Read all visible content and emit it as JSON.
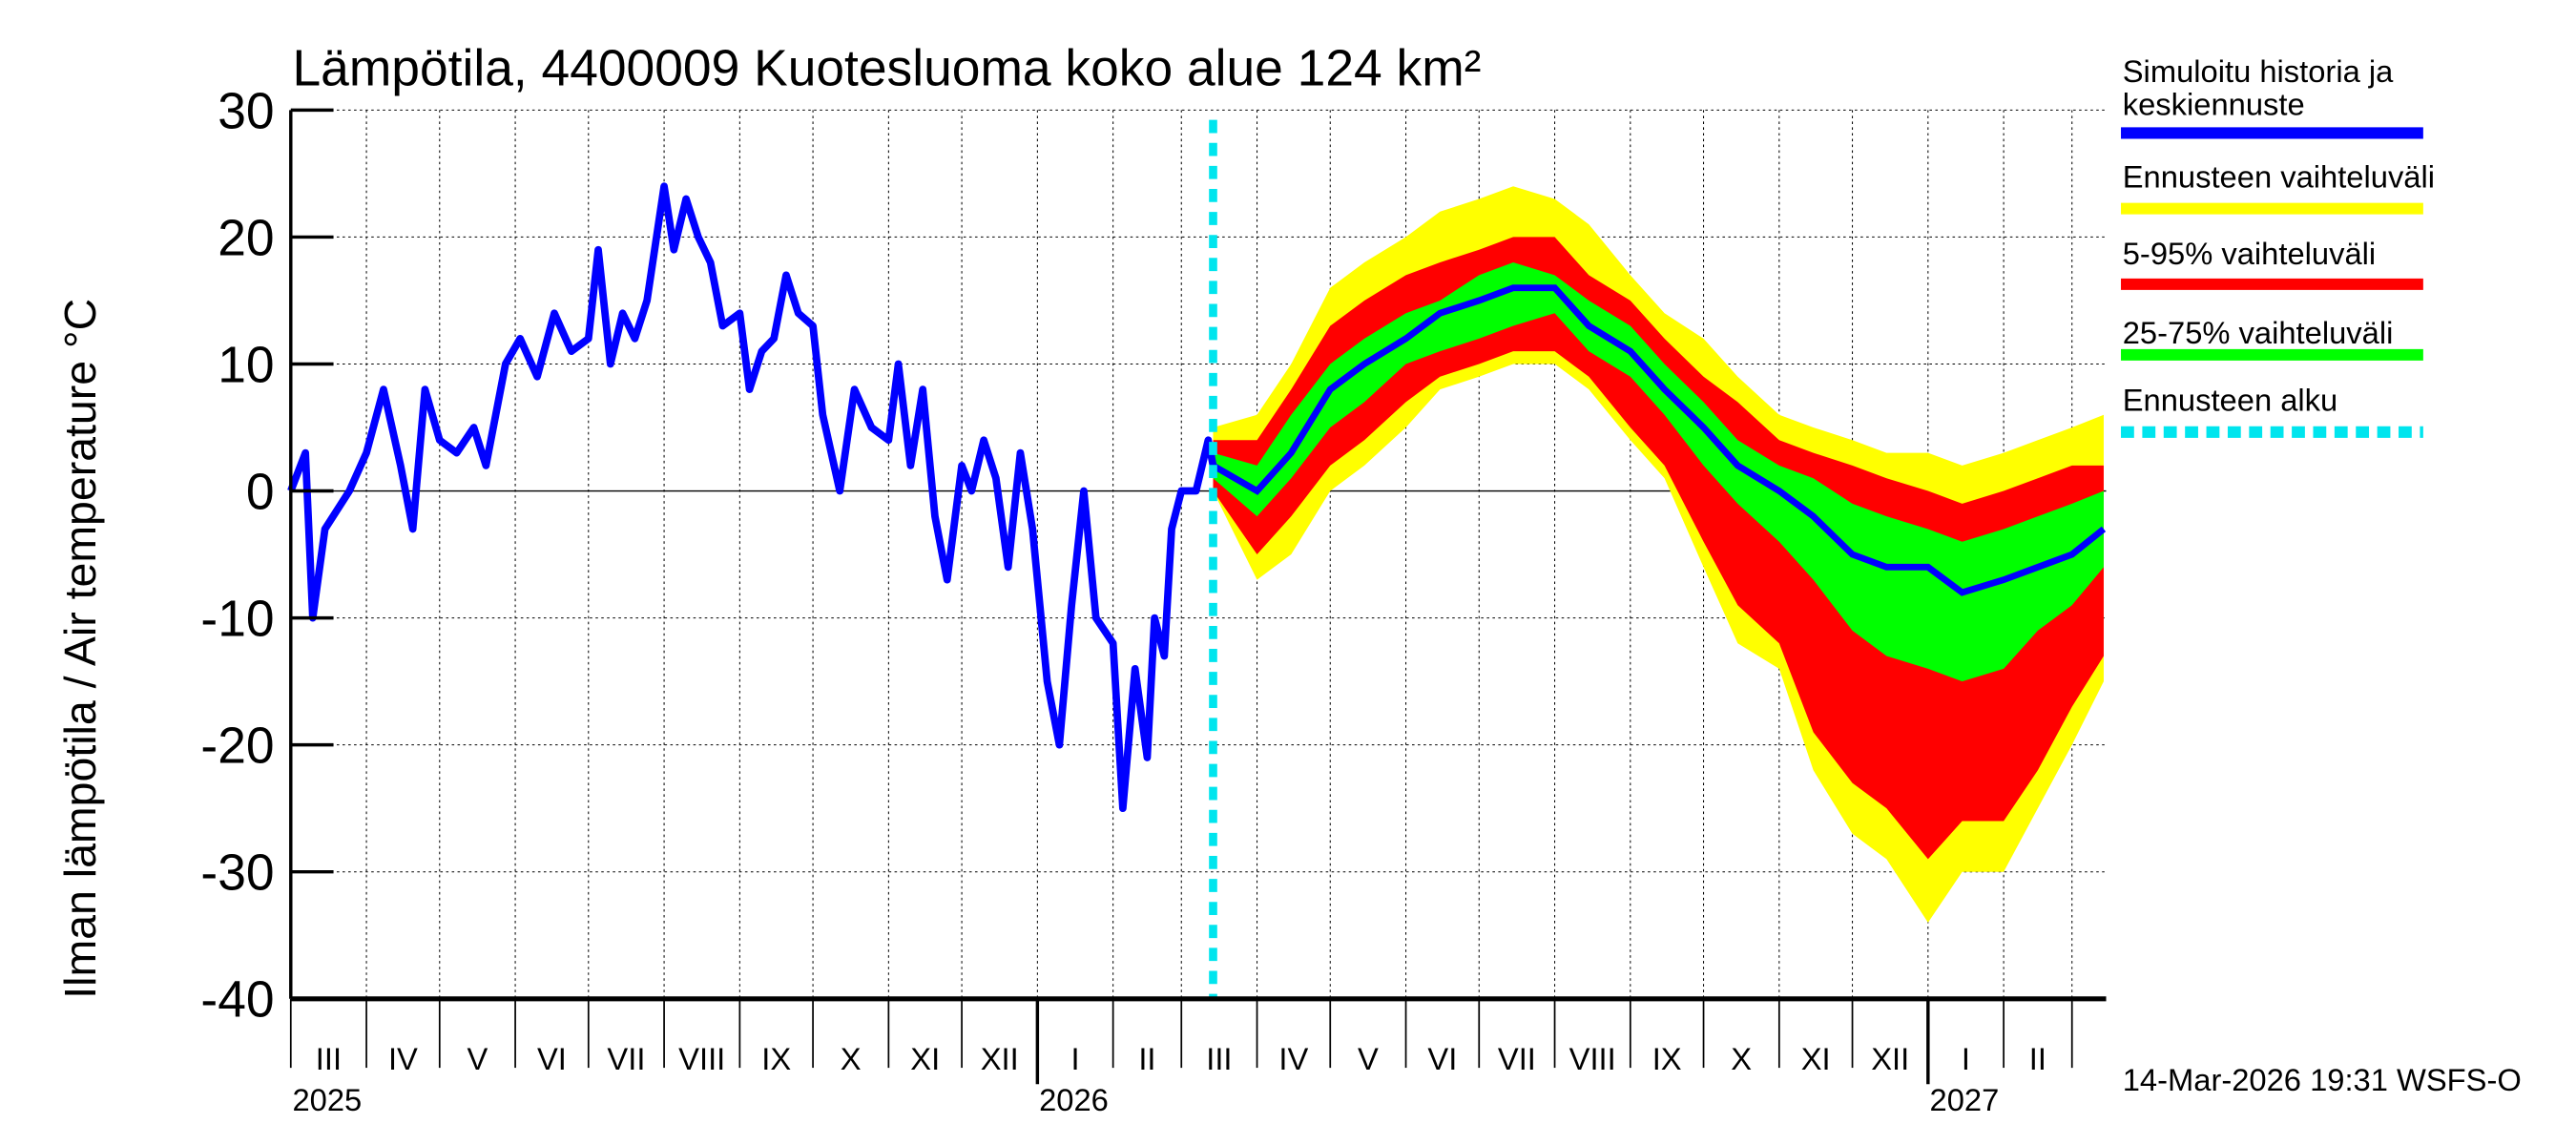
{
  "chart_data": {
    "type": "area",
    "title": "Lämpötila, 4400009 Kuotesluoma koko alue 124 km²",
    "ylabel": "Ilman lämpötila / Air temperature   °C",
    "ylim": [
      -40,
      30
    ],
    "yticks": [
      30,
      20,
      10,
      0,
      -10,
      -20,
      -30,
      -40
    ],
    "xlim": [
      "2025-03-01",
      "2027-03-15"
    ],
    "month_labels": [
      "III",
      "IV",
      "V",
      "VI",
      "VII",
      "VIII",
      "IX",
      "X",
      "XI",
      "XII",
      "I",
      "II",
      "III",
      "IV",
      "V",
      "VI",
      "VII",
      "VIII",
      "IX",
      "X",
      "XI",
      "XII",
      "I",
      "II"
    ],
    "year_labels": [
      {
        "year": "2025",
        "date": "2025-03-01"
      },
      {
        "year": "2026",
        "date": "2026-01-01"
      },
      {
        "year": "2027",
        "date": "2027-01-01"
      }
    ],
    "grid": true,
    "legend_position": "right",
    "legend": [
      {
        "label": "Simuloitu historia ja keskiennuste",
        "color": "#0000ff",
        "style": "solid"
      },
      {
        "label": "Ennusteen vaihteluväli",
        "color": "#ffff00",
        "style": "solid"
      },
      {
        "label": "5-95% vaihteluväli",
        "color": "#ff0000",
        "style": "solid"
      },
      {
        "label": "25-75% vaihteluväli",
        "color": "#00ff00",
        "style": "solid"
      },
      {
        "label": "Ennusteen alku",
        "color": "#00e5ee",
        "style": "dashed"
      }
    ],
    "forecast_start": "2026-03-14",
    "history": [
      [
        "2025-03-01",
        0
      ],
      [
        "2025-03-07",
        3
      ],
      [
        "2025-03-10",
        -10
      ],
      [
        "2025-03-15",
        -3
      ],
      [
        "2025-03-25",
        0
      ],
      [
        "2025-04-01",
        3
      ],
      [
        "2025-04-08",
        8
      ],
      [
        "2025-04-15",
        2
      ],
      [
        "2025-04-20",
        -3
      ],
      [
        "2025-04-25",
        8
      ],
      [
        "2025-05-01",
        4
      ],
      [
        "2025-05-08",
        3
      ],
      [
        "2025-05-15",
        5
      ],
      [
        "2025-05-20",
        2
      ],
      [
        "2025-05-28",
        10
      ],
      [
        "2025-06-03",
        12
      ],
      [
        "2025-06-10",
        9
      ],
      [
        "2025-06-17",
        14
      ],
      [
        "2025-06-24",
        11
      ],
      [
        "2025-07-01",
        12
      ],
      [
        "2025-07-05",
        19
      ],
      [
        "2025-07-10",
        10
      ],
      [
        "2025-07-15",
        14
      ],
      [
        "2025-07-20",
        12
      ],
      [
        "2025-07-25",
        15
      ],
      [
        "2025-08-01",
        24
      ],
      [
        "2025-08-05",
        19
      ],
      [
        "2025-08-10",
        23
      ],
      [
        "2025-08-15",
        20
      ],
      [
        "2025-08-20",
        18
      ],
      [
        "2025-08-25",
        13
      ],
      [
        "2025-09-01",
        14
      ],
      [
        "2025-09-05",
        8
      ],
      [
        "2025-09-10",
        11
      ],
      [
        "2025-09-15",
        12
      ],
      [
        "2025-09-20",
        17
      ],
      [
        "2025-09-25",
        14
      ],
      [
        "2025-10-01",
        13
      ],
      [
        "2025-10-05",
        6
      ],
      [
        "2025-10-12",
        0
      ],
      [
        "2025-10-18",
        8
      ],
      [
        "2025-10-25",
        5
      ],
      [
        "2025-11-01",
        4
      ],
      [
        "2025-11-05",
        10
      ],
      [
        "2025-11-10",
        2
      ],
      [
        "2025-11-15",
        8
      ],
      [
        "2025-11-20",
        -2
      ],
      [
        "2025-11-25",
        -7
      ],
      [
        "2025-12-01",
        2
      ],
      [
        "2025-12-05",
        0
      ],
      [
        "2025-12-10",
        4
      ],
      [
        "2025-12-15",
        1
      ],
      [
        "2025-12-20",
        -6
      ],
      [
        "2025-12-25",
        3
      ],
      [
        "2025-12-30",
        -3
      ],
      [
        "2026-01-05",
        -15
      ],
      [
        "2026-01-10",
        -20
      ],
      [
        "2026-01-15",
        -9
      ],
      [
        "2026-01-20",
        0
      ],
      [
        "2026-01-25",
        -10
      ],
      [
        "2026-02-01",
        -12
      ],
      [
        "2026-02-05",
        -25
      ],
      [
        "2026-02-10",
        -14
      ],
      [
        "2026-02-15",
        -21
      ],
      [
        "2026-02-18",
        -10
      ],
      [
        "2026-02-22",
        -13
      ],
      [
        "2026-02-25",
        -3
      ],
      [
        "2026-03-01",
        0
      ],
      [
        "2026-03-07",
        0
      ],
      [
        "2026-03-12",
        4
      ],
      [
        "2026-03-14",
        2
      ]
    ],
    "forecast_columns": [
      "date",
      "min",
      "p5",
      "p25",
      "median",
      "p75",
      "p95",
      "max"
    ],
    "forecast": [
      [
        "2026-03-14",
        0,
        0,
        1,
        2,
        3,
        4,
        5
      ],
      [
        "2026-04-01",
        -7,
        -5,
        -2,
        0,
        2,
        4,
        6
      ],
      [
        "2026-04-15",
        -5,
        -2,
        1,
        3,
        6,
        8,
        10
      ],
      [
        "2026-05-01",
        0,
        2,
        5,
        8,
        10,
        13,
        16
      ],
      [
        "2026-05-15",
        2,
        4,
        7,
        10,
        12,
        15,
        18
      ],
      [
        "2026-06-01",
        5,
        7,
        10,
        12,
        14,
        17,
        20
      ],
      [
        "2026-06-15",
        8,
        9,
        11,
        14,
        15,
        18,
        22
      ],
      [
        "2026-07-01",
        9,
        10,
        12,
        15,
        17,
        19,
        23
      ],
      [
        "2026-07-15",
        10,
        11,
        13,
        16,
        18,
        20,
        24
      ],
      [
        "2026-08-01",
        10,
        11,
        14,
        16,
        17,
        20,
        23
      ],
      [
        "2026-08-15",
        8,
        9,
        11,
        13,
        15,
        17,
        21
      ],
      [
        "2026-09-01",
        4,
        5,
        9,
        11,
        13,
        15,
        17
      ],
      [
        "2026-09-15",
        1,
        2,
        6,
        8,
        10,
        12,
        14
      ],
      [
        "2026-10-01",
        -6,
        -4,
        2,
        5,
        7,
        9,
        12
      ],
      [
        "2026-10-15",
        -12,
        -9,
        -1,
        2,
        4,
        7,
        9
      ],
      [
        "2026-11-01",
        -14,
        -12,
        -4,
        0,
        2,
        4,
        6
      ],
      [
        "2026-11-15",
        -22,
        -19,
        -7,
        -2,
        1,
        3,
        5
      ],
      [
        "2026-12-01",
        -27,
        -23,
        -11,
        -5,
        -1,
        2,
        4
      ],
      [
        "2026-12-15",
        -29,
        -25,
        -13,
        -6,
        -2,
        1,
        3
      ],
      [
        "2027-01-01",
        -34,
        -29,
        -14,
        -6,
        -3,
        0,
        3
      ],
      [
        "2027-01-15",
        -30,
        -26,
        -15,
        -8,
        -4,
        -1,
        2
      ],
      [
        "2027-02-01",
        -30,
        -26,
        -14,
        -7,
        -3,
        0,
        3
      ],
      [
        "2027-02-15",
        -25,
        -22,
        -11,
        -6,
        -2,
        1,
        4
      ],
      [
        "2027-03-01",
        -20,
        -17,
        -9,
        -5,
        -1,
        2,
        5
      ],
      [
        "2027-03-14",
        -15,
        -13,
        -6,
        -3,
        0,
        2,
        6
      ]
    ]
  },
  "footer": {
    "timestamp": "14-Mar-2026 19:31 WSFS-O"
  }
}
